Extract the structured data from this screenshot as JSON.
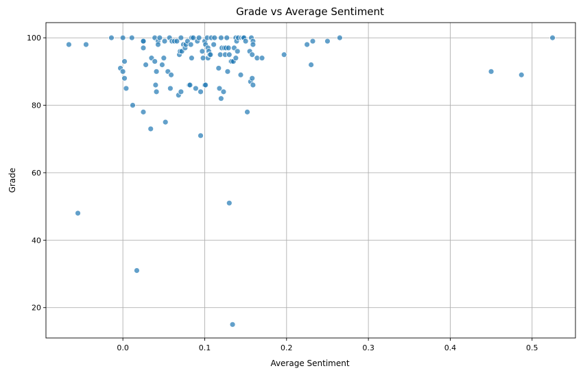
{
  "chart_data": {
    "type": "scatter",
    "title": "Grade vs Average Sentiment",
    "xlabel": "Average Sentiment",
    "ylabel": "Grade",
    "xlim": [
      -0.094,
      0.553
    ],
    "ylim": [
      11,
      104.5
    ],
    "xticks": [
      0.0,
      0.1,
      0.2,
      0.3,
      0.4,
      0.5
    ],
    "xtick_labels": [
      "0.0",
      "0.1",
      "0.2",
      "0.3",
      "0.4",
      "0.5"
    ],
    "yticks": [
      20,
      40,
      60,
      80,
      100
    ],
    "ytick_labels": [
      "20",
      "40",
      "60",
      "80",
      "100"
    ],
    "grid": true,
    "color": "#1f77b4",
    "points": [
      [
        -0.066,
        98
      ],
      [
        -0.045,
        98
      ],
      [
        -0.014,
        100
      ],
      [
        0.0,
        100
      ],
      [
        0.011,
        100
      ],
      [
        -0.003,
        91
      ],
      [
        0.0,
        90
      ],
      [
        0.002,
        88
      ],
      [
        0.002,
        93
      ],
      [
        0.004,
        85
      ],
      [
        0.012,
        80
      ],
      [
        0.025,
        78
      ],
      [
        0.025,
        99
      ],
      [
        0.025,
        99
      ],
      [
        0.025,
        97
      ],
      [
        0.028,
        92
      ],
      [
        0.034,
        73
      ],
      [
        0.035,
        94
      ],
      [
        0.039,
        100
      ],
      [
        0.039,
        93
      ],
      [
        0.04,
        86
      ],
      [
        0.041,
        84
      ],
      [
        0.041,
        90
      ],
      [
        0.043,
        99
      ],
      [
        0.043,
        98
      ],
      [
        0.045,
        100
      ],
      [
        0.048,
        92
      ],
      [
        0.05,
        94
      ],
      [
        0.051,
        99
      ],
      [
        0.052,
        75
      ],
      [
        0.055,
        90
      ],
      [
        0.057,
        100
      ],
      [
        0.058,
        85
      ],
      [
        0.059,
        89
      ],
      [
        0.06,
        99
      ],
      [
        0.063,
        99
      ],
      [
        0.066,
        99
      ],
      [
        0.068,
        83
      ],
      [
        0.069,
        95
      ],
      [
        0.07,
        96
      ],
      [
        0.071,
        84
      ],
      [
        0.071,
        100
      ],
      [
        0.072,
        96
      ],
      [
        0.074,
        98
      ],
      [
        0.076,
        97
      ],
      [
        0.077,
        98
      ],
      [
        0.079,
        99
      ],
      [
        0.081,
        86
      ],
      [
        0.082,
        86
      ],
      [
        0.083,
        98
      ],
      [
        0.084,
        100
      ],
      [
        0.084,
        94
      ],
      [
        0.086,
        100
      ],
      [
        0.089,
        85
      ],
      [
        0.091,
        99
      ],
      [
        0.093,
        100
      ],
      [
        0.095,
        71
      ],
      [
        0.095,
        84
      ],
      [
        0.097,
        96
      ],
      [
        0.098,
        94
      ],
      [
        0.1,
        99
      ],
      [
        0.1,
        86
      ],
      [
        0.101,
        86
      ],
      [
        0.101,
        98
      ],
      [
        0.103,
        100
      ],
      [
        0.104,
        97
      ],
      [
        0.104,
        94
      ],
      [
        0.105,
        96
      ],
      [
        0.106,
        95
      ],
      [
        0.107,
        95
      ],
      [
        0.108,
        100
      ],
      [
        0.111,
        98
      ],
      [
        0.112,
        100
      ],
      [
        0.117,
        91
      ],
      [
        0.118,
        85
      ],
      [
        0.119,
        95
      ],
      [
        0.12,
        100
      ],
      [
        0.12,
        82
      ],
      [
        0.121,
        97
      ],
      [
        0.123,
        84
      ],
      [
        0.124,
        97
      ],
      [
        0.125,
        95
      ],
      [
        0.126,
        97
      ],
      [
        0.127,
        100
      ],
      [
        0.128,
        90
      ],
      [
        0.129,
        97
      ],
      [
        0.13,
        51
      ],
      [
        0.13,
        95
      ],
      [
        0.132,
        93
      ],
      [
        0.133,
        93
      ],
      [
        0.134,
        15
      ],
      [
        0.135,
        93
      ],
      [
        0.136,
        97
      ],
      [
        0.138,
        94
      ],
      [
        0.138,
        100
      ],
      [
        0.139,
        99
      ],
      [
        0.14,
        96
      ],
      [
        0.141,
        100
      ],
      [
        0.144,
        89
      ],
      [
        0.145,
        100
      ],
      [
        0.147,
        100
      ],
      [
        0.148,
        100
      ],
      [
        0.15,
        99
      ],
      [
        0.152,
        78
      ],
      [
        0.155,
        96
      ],
      [
        0.156,
        87
      ],
      [
        0.157,
        100
      ],
      [
        0.158,
        95
      ],
      [
        0.158,
        88
      ],
      [
        0.159,
        99
      ],
      [
        0.159,
        98
      ],
      [
        0.159,
        86
      ],
      [
        0.164,
        94
      ],
      [
        0.17,
        94
      ],
      [
        0.197,
        95
      ],
      [
        0.225,
        98
      ],
      [
        0.23,
        92
      ],
      [
        0.232,
        99
      ],
      [
        0.25,
        99
      ],
      [
        0.265,
        100
      ],
      [
        0.45,
        90
      ],
      [
        0.487,
        89
      ],
      [
        0.525,
        100
      ],
      [
        -0.055,
        48
      ],
      [
        0.017,
        31
      ]
    ]
  }
}
